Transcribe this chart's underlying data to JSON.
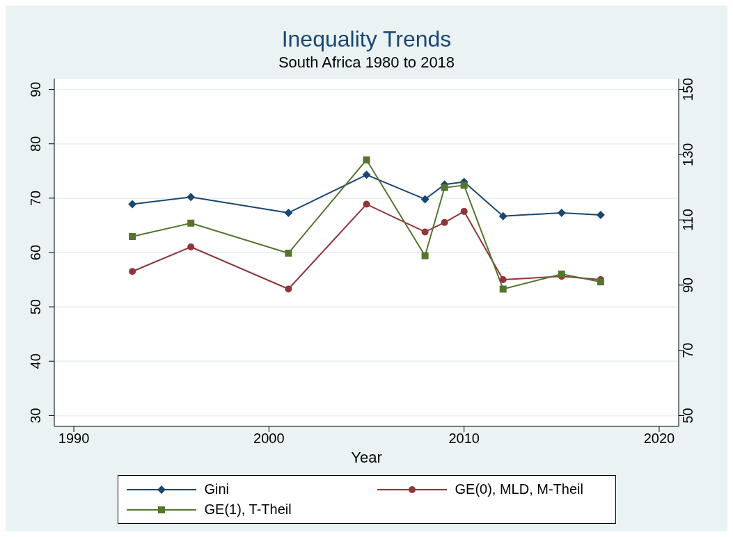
{
  "chart_data": {
    "type": "line",
    "title": "Inequality Trends",
    "subtitle": "South Africa 1980 to 2018",
    "xlabel": "Year",
    "x": [
      1993,
      1996,
      2001,
      2005,
      2008,
      2009,
      2010,
      2012,
      2015,
      2017
    ],
    "xlim": [
      1989,
      2021
    ],
    "xticks": [
      1990,
      2000,
      2010,
      2020
    ],
    "ylim": [
      28,
      92
    ],
    "yticks": [
      30,
      40,
      50,
      60,
      70,
      80,
      90
    ],
    "y2lim": [
      46.7,
      153.3
    ],
    "y2ticks": [
      50,
      70,
      90,
      110,
      130,
      150
    ],
    "grid": "y",
    "legend": "bottom",
    "series": [
      {
        "name": "Gini",
        "color": "#1a476f",
        "marker": "diamond",
        "values": [
          68.9,
          70.2,
          67.3,
          74.3,
          69.8,
          72.5,
          73.0,
          66.7,
          67.3,
          66.9
        ]
      },
      {
        "name": "GE(0), MLD, M-Theil",
        "color": "#90353b",
        "marker": "circle",
        "axis": "y2",
        "values": [
          94.2,
          101.7,
          88.8,
          114.8,
          106.3,
          109.2,
          112.6,
          91.7,
          92.7,
          91.7
        ]
      },
      {
        "name": "GE(1), T-Theil",
        "color": "#55752f",
        "marker": "square",
        "axis": "y2",
        "values": [
          104.9,
          109.0,
          99.8,
          128.4,
          99.0,
          119.9,
          120.6,
          88.8,
          93.4,
          91.0
        ]
      }
    ]
  }
}
